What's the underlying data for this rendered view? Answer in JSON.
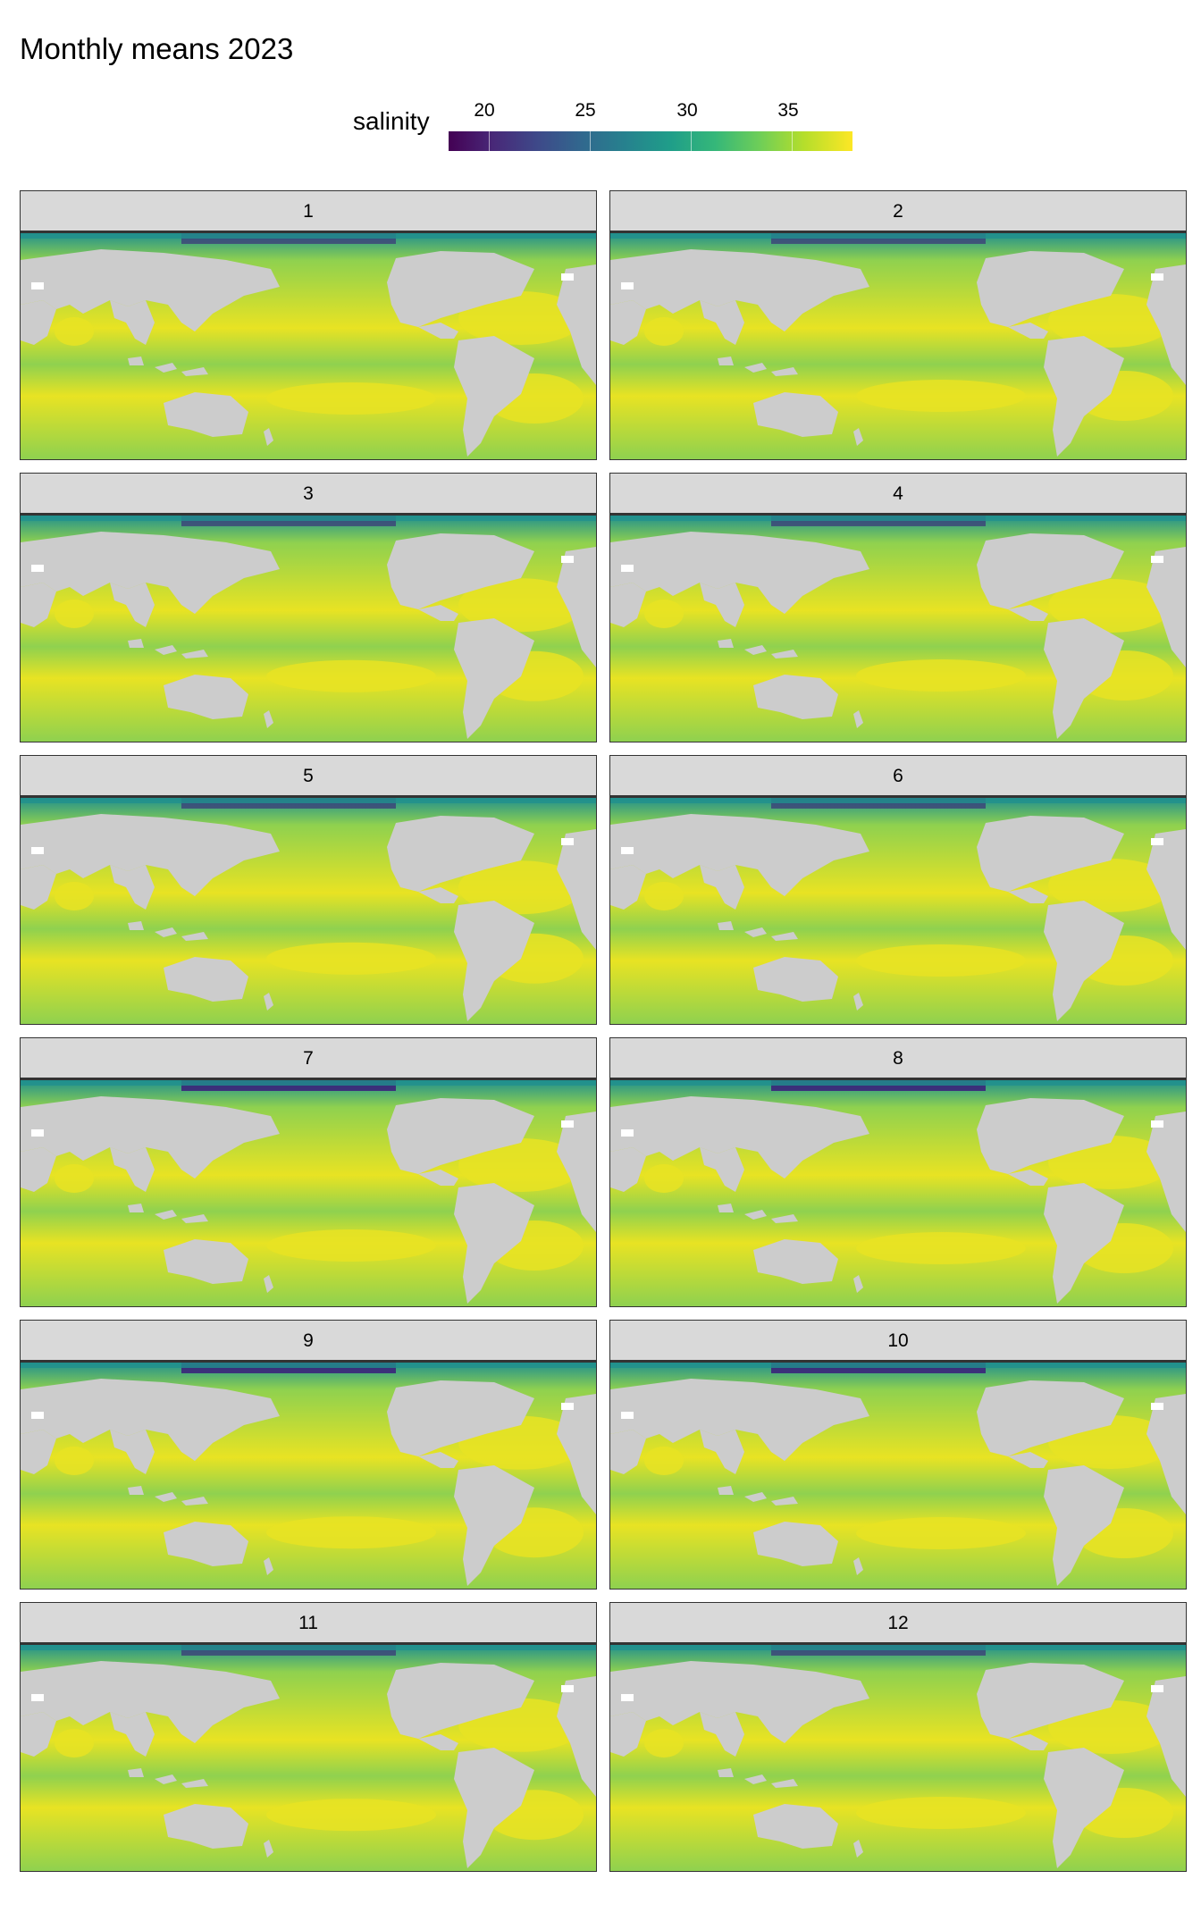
{
  "title": "Monthly means 2023",
  "legend": {
    "title": "salinity",
    "ticks": [
      "20",
      "25",
      "30",
      "35"
    ],
    "tick_values": [
      20,
      25,
      30,
      35
    ],
    "range": [
      18,
      38
    ],
    "colormap": [
      "#440154",
      "#482878",
      "#3e4989",
      "#31688e",
      "#26828e",
      "#1f9e89",
      "#35b779",
      "#6ece58",
      "#b5de2b",
      "#fde725"
    ]
  },
  "colors": {
    "land": "#cccccc",
    "strip_background": "#d9d9d9",
    "border": "#333333",
    "ocean_base": "#8fd14f",
    "ocean_high": "#e8e323",
    "ocean_low": "#21908d",
    "arctic_fresh": "#3b2a7a"
  },
  "panels": [
    {
      "label": "1",
      "month": 1
    },
    {
      "label": "2",
      "month": 2
    },
    {
      "label": "3",
      "month": 3
    },
    {
      "label": "4",
      "month": 4
    },
    {
      "label": "5",
      "month": 5
    },
    {
      "label": "6",
      "month": 6
    },
    {
      "label": "7",
      "month": 7
    },
    {
      "label": "8",
      "month": 8
    },
    {
      "label": "9",
      "month": 9
    },
    {
      "label": "10",
      "month": 10
    },
    {
      "label": "11",
      "month": 11
    },
    {
      "label": "12",
      "month": 12
    }
  ]
}
